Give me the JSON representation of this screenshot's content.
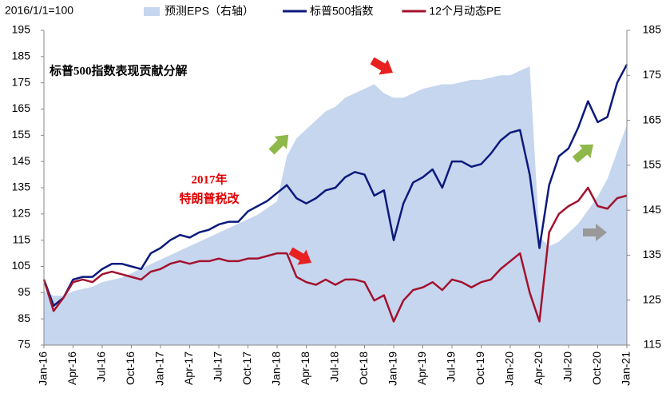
{
  "chart_data": {
    "type": "line",
    "unit_label": "2016/1/1=100",
    "annotations": [
      "标普500指数表现贡献分解",
      "2017年",
      "特朗普税改"
    ],
    "categories": [
      "Jan-16",
      null,
      null,
      "Apr-16",
      null,
      null,
      "Jul-16",
      null,
      null,
      "Oct-16",
      null,
      null,
      "Jan-17",
      null,
      null,
      "Apr-17",
      null,
      null,
      "Jul-17",
      null,
      null,
      "Oct-17",
      null,
      null,
      "Jan-18",
      null,
      null,
      "Apr-18",
      null,
      null,
      "Jul-18",
      null,
      null,
      "Oct-18",
      null,
      null,
      "Jan-19",
      null,
      null,
      "Apr-19",
      null,
      null,
      "Jul-19",
      null,
      null,
      "Oct-19",
      null,
      null,
      "Jan-20",
      null,
      null,
      "Apr-20",
      null,
      null,
      "Jul-20",
      null,
      null,
      "Oct-20",
      null,
      null,
      "Jan-21"
    ],
    "series": [
      {
        "name": "预测EPS（右轴）",
        "color": "#c6d6ef",
        "kind": "area",
        "axis": "y2",
        "values": [
          127,
          126,
          126,
          127,
          127.5,
          128,
          129,
          129.5,
          130,
          131,
          132,
          133,
          134,
          135,
          136,
          137,
          138,
          139,
          140,
          141,
          142,
          143,
          144,
          145.5,
          147,
          157,
          161,
          163,
          165,
          167,
          168,
          170,
          171,
          172,
          173,
          171,
          170,
          170,
          171,
          172,
          172.5,
          173,
          173,
          173.5,
          174,
          174,
          174.5,
          175,
          175,
          176,
          177,
          139,
          137,
          138,
          140,
          142,
          145,
          148,
          152,
          158,
          164
        ]
      },
      {
        "name": "标普500指数",
        "color": "#0b1a7c",
        "kind": "line",
        "values": [
          100,
          90,
          93,
          100,
          101,
          101,
          104,
          106,
          106,
          105,
          104,
          110,
          112,
          115,
          117,
          116,
          118,
          119,
          121,
          122,
          122,
          126,
          128,
          130,
          133,
          136,
          131,
          129,
          131,
          134,
          135,
          139,
          141,
          140,
          132,
          134,
          115,
          129,
          137,
          139,
          142,
          135,
          145,
          145,
          143,
          144,
          148,
          153,
          156,
          157,
          140,
          112,
          136,
          147,
          150,
          158,
          168,
          160,
          162,
          175,
          182
        ]
      },
      {
        "name": "12个月动态PE",
        "color": "#a3122e",
        "kind": "line",
        "values": [
          100,
          88,
          93,
          99,
          100,
          99,
          102,
          103,
          102,
          101,
          100,
          103,
          104,
          106,
          107,
          106,
          107,
          107,
          108,
          107,
          107,
          108,
          108,
          109,
          110,
          110,
          101,
          99,
          98,
          100,
          98,
          100,
          100,
          99,
          92,
          94,
          84,
          92,
          96,
          97,
          99,
          96,
          100,
          99,
          97,
          99,
          100,
          104,
          107,
          110,
          95,
          84,
          118,
          125,
          128,
          130,
          135,
          128,
          127,
          131,
          132
        ]
      }
    ],
    "ylim": [
      75,
      195
    ],
    "yticks": [
      75,
      85,
      95,
      105,
      115,
      125,
      135,
      145,
      155,
      165,
      175,
      185,
      195
    ],
    "y2lim": [
      115,
      185
    ],
    "y2ticks": [
      115,
      125,
      135,
      145,
      155,
      165,
      175,
      185
    ],
    "legend": "top"
  }
}
